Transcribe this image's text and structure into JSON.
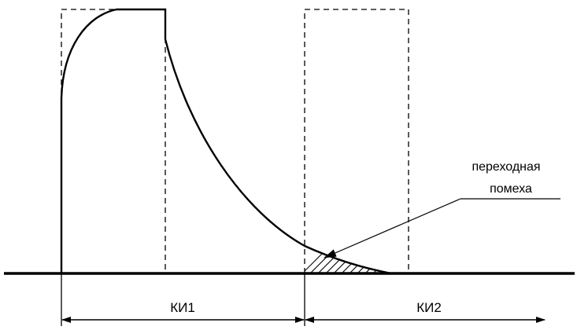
{
  "annotation": {
    "line1": "переходная",
    "line2": "помеха"
  },
  "intervals": [
    {
      "label": "КИ1"
    },
    {
      "label": "КИ2"
    }
  ],
  "colors": {
    "stroke": "#000000",
    "background": "#ffffff"
  }
}
